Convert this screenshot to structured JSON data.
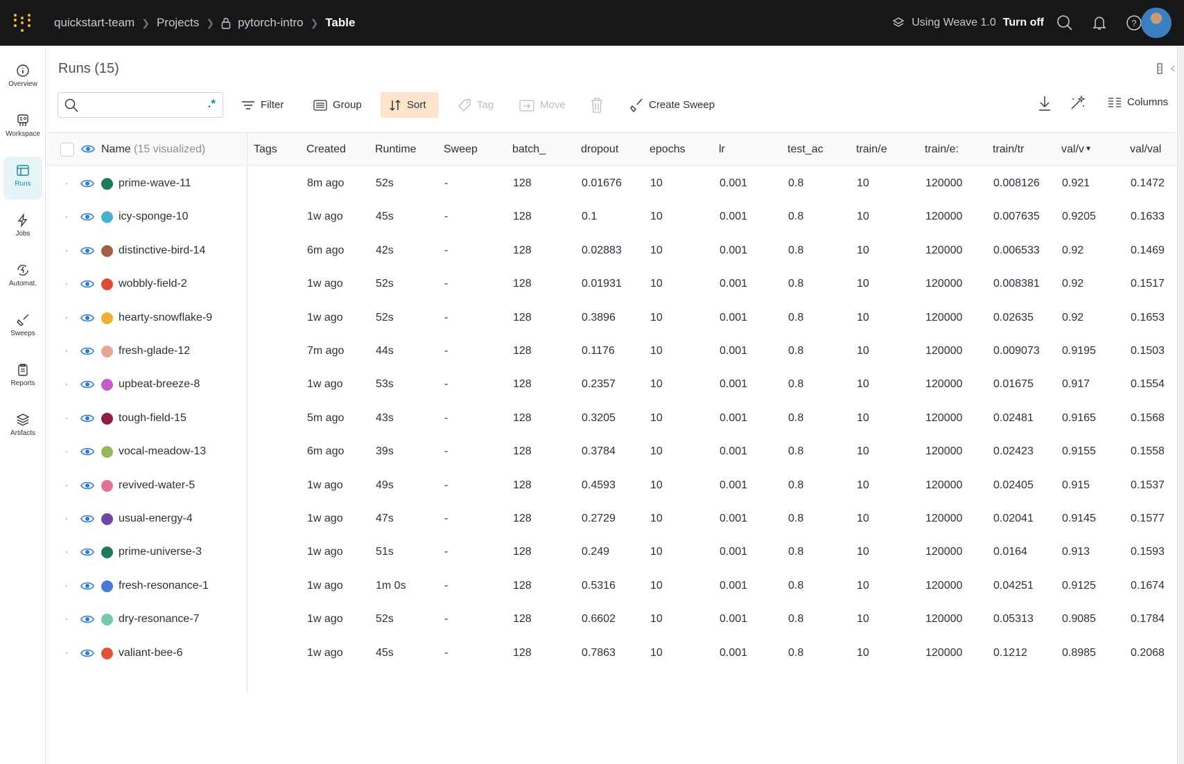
{
  "breadcrumb": {
    "team": "quickstart-team",
    "projects": "Projects",
    "project": "pytorch-intro",
    "page": "Table"
  },
  "topbar": {
    "weave_text": "Using Weave 1.0",
    "turn_off": "Turn off"
  },
  "sidebar": {
    "items": [
      {
        "label": "Overview",
        "icon": "info-icon"
      },
      {
        "label": "Workspace",
        "icon": "workspace-icon"
      },
      {
        "label": "Runs",
        "icon": "table-icon",
        "active": true
      },
      {
        "label": "Jobs",
        "icon": "lightning-icon"
      },
      {
        "label": "Automat.",
        "icon": "automation-icon"
      },
      {
        "label": "Sweeps",
        "icon": "broom-icon"
      },
      {
        "label": "Reports",
        "icon": "clipboard-icon"
      },
      {
        "label": "Artifacts",
        "icon": "layers-icon"
      }
    ]
  },
  "runs": {
    "title": "Runs (15)",
    "search_placeholder": "",
    "regex": ".*"
  },
  "toolbar": {
    "filter": "Filter",
    "group": "Group",
    "sort": "Sort",
    "tag": "Tag",
    "move": "Move",
    "create_sweep": "Create Sweep",
    "columns": "Columns"
  },
  "accent": "#168aa6",
  "table": {
    "name_header": "Name",
    "visualized": "(15 visualized)",
    "columns": [
      "Tags",
      "Created",
      "Runtime",
      "Sweep",
      "batch_",
      "dropout",
      "epochs",
      "lr",
      "test_ac",
      "train/e",
      "train/e:",
      "train/tr",
      "val/v",
      "val/val"
    ],
    "rows": [
      {
        "name": "prime-wave-11",
        "color": "#1f7a5c",
        "cells": [
          "",
          "8m ago",
          "52s",
          "-",
          "128",
          "0.01676",
          "10",
          "0.001",
          "0.8",
          "10",
          "120000",
          "0.008126",
          "0.921",
          "0.1472"
        ]
      },
      {
        "name": "icy-sponge-10",
        "color": "#4aafd0",
        "cells": [
          "",
          "1w ago",
          "45s",
          "-",
          "128",
          "0.1",
          "10",
          "0.001",
          "0.8",
          "10",
          "120000",
          "0.007635",
          "0.9205",
          "0.1633"
        ]
      },
      {
        "name": "distinctive-bird-14",
        "color": "#a0604a",
        "cells": [
          "",
          "6m ago",
          "42s",
          "-",
          "128",
          "0.02883",
          "10",
          "0.001",
          "0.8",
          "10",
          "120000",
          "0.006533",
          "0.92",
          "0.1469"
        ]
      },
      {
        "name": "wobbly-field-2",
        "color": "#df4b3a",
        "cells": [
          "",
          "1w ago",
          "52s",
          "-",
          "128",
          "0.01931",
          "10",
          "0.001",
          "0.8",
          "10",
          "120000",
          "0.008381",
          "0.92",
          "0.1517"
        ]
      },
      {
        "name": "hearty-snowflake-9",
        "color": "#eab02e",
        "cells": [
          "",
          "1w ago",
          "52s",
          "-",
          "128",
          "0.3896",
          "10",
          "0.001",
          "0.8",
          "10",
          "120000",
          "0.02635",
          "0.92",
          "0.1653"
        ]
      },
      {
        "name": "fresh-glade-12",
        "color": "#e9a593",
        "cells": [
          "",
          "7m ago",
          "44s",
          "-",
          "128",
          "0.1176",
          "10",
          "0.001",
          "0.8",
          "10",
          "120000",
          "0.009073",
          "0.9195",
          "0.1503"
        ]
      },
      {
        "name": "upbeat-breeze-8",
        "color": "#c35cc6",
        "cells": [
          "",
          "1w ago",
          "53s",
          "-",
          "128",
          "0.2357",
          "10",
          "0.001",
          "0.8",
          "10",
          "120000",
          "0.01675",
          "0.917",
          "0.1554"
        ]
      },
      {
        "name": "tough-field-15",
        "color": "#8f1f45",
        "cells": [
          "",
          "5m ago",
          "43s",
          "-",
          "128",
          "0.3205",
          "10",
          "0.001",
          "0.8",
          "10",
          "120000",
          "0.02481",
          "0.9165",
          "0.1568"
        ]
      },
      {
        "name": "vocal-meadow-13",
        "color": "#97b75e",
        "cells": [
          "",
          "6m ago",
          "39s",
          "-",
          "128",
          "0.3784",
          "10",
          "0.001",
          "0.8",
          "10",
          "120000",
          "0.02423",
          "0.9155",
          "0.1558"
        ]
      },
      {
        "name": "revived-water-5",
        "color": "#e07297",
        "cells": [
          "",
          "1w ago",
          "49s",
          "-",
          "128",
          "0.4593",
          "10",
          "0.001",
          "0.8",
          "10",
          "120000",
          "0.02405",
          "0.915",
          "0.1537"
        ]
      },
      {
        "name": "usual-energy-4",
        "color": "#6f45a8",
        "cells": [
          "",
          "1w ago",
          "47s",
          "-",
          "128",
          "0.2729",
          "10",
          "0.001",
          "0.8",
          "10",
          "120000",
          "0.02041",
          "0.9145",
          "0.1577"
        ]
      },
      {
        "name": "prime-universe-3",
        "color": "#217a57",
        "cells": [
          "",
          "1w ago",
          "51s",
          "-",
          "128",
          "0.249",
          "10",
          "0.001",
          "0.8",
          "10",
          "120000",
          "0.0164",
          "0.913",
          "0.1593"
        ]
      },
      {
        "name": "fresh-resonance-1",
        "color": "#4a78d4",
        "cells": [
          "",
          "1w ago",
          "1m 0s",
          "-",
          "128",
          "0.5316",
          "10",
          "0.001",
          "0.8",
          "10",
          "120000",
          "0.04251",
          "0.9125",
          "0.1674"
        ]
      },
      {
        "name": "dry-resonance-7",
        "color": "#76c8aa",
        "cells": [
          "",
          "1w ago",
          "52s",
          "-",
          "128",
          "0.6602",
          "10",
          "0.001",
          "0.8",
          "10",
          "120000",
          "0.05313",
          "0.9085",
          "0.1784"
        ]
      },
      {
        "name": "valiant-bee-6",
        "color": "#e0553a",
        "cells": [
          "",
          "1w ago",
          "45s",
          "-",
          "128",
          "0.7863",
          "10",
          "0.001",
          "0.8",
          "10",
          "120000",
          "0.1212",
          "0.8985",
          "0.2068"
        ]
      }
    ]
  }
}
